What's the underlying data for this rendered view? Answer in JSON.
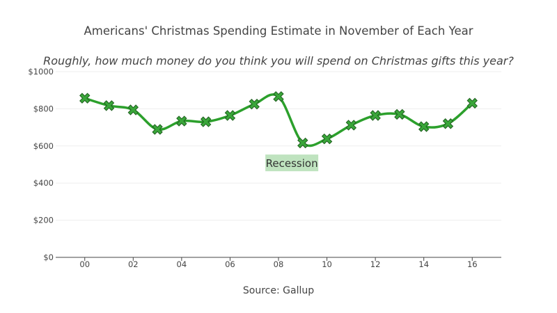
{
  "chart_data": {
    "type": "line",
    "title": "Americans' Christmas Spending Estimate in November of Each Year",
    "subtitle": "Roughly, how much money do you think you will spend on Christmas gifts this year?",
    "xlabel": "Source: Gallup",
    "ylabel": "",
    "x": [
      0,
      1,
      2,
      3,
      4,
      5,
      6,
      7,
      8,
      9,
      10,
      11,
      12,
      13,
      14,
      15,
      16
    ],
    "values": [
      857,
      817,
      794,
      689,
      734,
      730,
      764,
      825,
      866,
      616,
      638,
      712,
      764,
      770,
      704,
      720,
      830
    ],
    "xlim": [
      -1.2,
      17.2
    ],
    "ylim": [
      0,
      1000
    ],
    "x_ticks": [
      0,
      2,
      4,
      6,
      8,
      10,
      12,
      14,
      16
    ],
    "x_tick_labels": [
      "00",
      "02",
      "04",
      "06",
      "08",
      "10",
      "12",
      "14",
      "16"
    ],
    "y_ticks": [
      0,
      200,
      400,
      600,
      800,
      1000
    ],
    "y_tick_labels": [
      "$0",
      "$200",
      "$400",
      "$600",
      "$800",
      "$1000"
    ],
    "grid": true,
    "line_color": "#2ca02c",
    "marker_fill": "#3aa63a",
    "marker_stroke": "#1f5f1f",
    "annotation": {
      "text": "Recession",
      "x": 8.55,
      "y": 505,
      "bgcolor": "#bfe3bf"
    }
  }
}
